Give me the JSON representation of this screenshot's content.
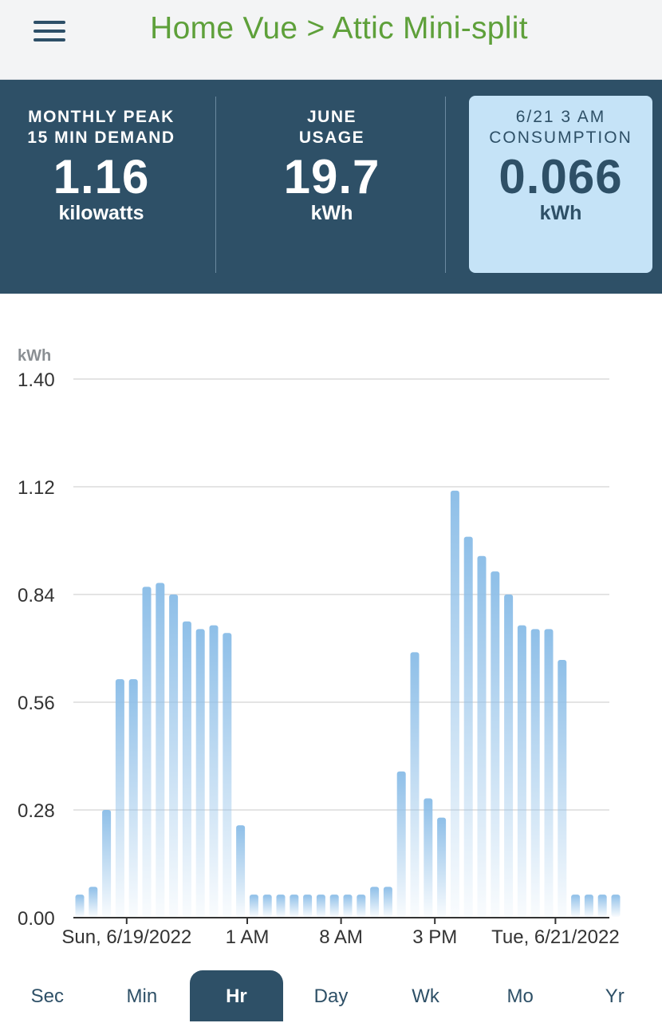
{
  "header": {
    "title": "Home Vue > Attic Mini-split",
    "menu_icon": "hamburger-menu-icon"
  },
  "stats": [
    {
      "label_line1": "MONTHLY PEAK",
      "label_line2": "15 MIN DEMAND",
      "value": "1.16",
      "unit": "kilowatts",
      "selected": false
    },
    {
      "label_line1": "JUNE",
      "label_line2": "USAGE",
      "value": "19.7",
      "unit": "kWh",
      "selected": false
    },
    {
      "label_line1": "6/21 3 AM",
      "label_line2": "CONSUMPTION",
      "value": "0.066",
      "unit": "kWh",
      "selected": true
    }
  ],
  "colors": {
    "header_bg": "#2e5067",
    "accent_green": "#5ea03a",
    "bar": "#8ebfe8",
    "selected_card": "#c5e3f7"
  },
  "chart_data": {
    "type": "bar",
    "ylabel": "kWh",
    "ylim": [
      0,
      1.4
    ],
    "yticks": [
      "1.40",
      "1.12",
      "0.84",
      "0.56",
      "0.28",
      "0.00"
    ],
    "xtick_labels": [
      {
        "text": "Sun, 6/19/2022",
        "index": 3.5
      },
      {
        "text": "1 AM",
        "index": 12.5
      },
      {
        "text": "8 AM",
        "index": 19.5
      },
      {
        "text": "3 PM",
        "index": 26.5
      },
      {
        "text": "Tue, 6/21/2022",
        "index": 35.5
      }
    ],
    "values": [
      0.06,
      0.08,
      0.28,
      0.62,
      0.62,
      0.86,
      0.87,
      0.84,
      0.77,
      0.75,
      0.76,
      0.74,
      0.24,
      0.06,
      0.06,
      0.06,
      0.06,
      0.06,
      0.06,
      0.06,
      0.06,
      0.06,
      0.08,
      0.08,
      0.38,
      0.69,
      0.31,
      0.26,
      1.11,
      0.99,
      0.94,
      0.9,
      0.84,
      0.76,
      0.75,
      0.75,
      0.67,
      0.06,
      0.06,
      0.06,
      0.06
    ],
    "grid": true
  },
  "bottom_nav": {
    "items": [
      "Sec",
      "Min",
      "Hr",
      "Day",
      "Wk",
      "Mo",
      "Yr"
    ],
    "active": "Hr"
  }
}
